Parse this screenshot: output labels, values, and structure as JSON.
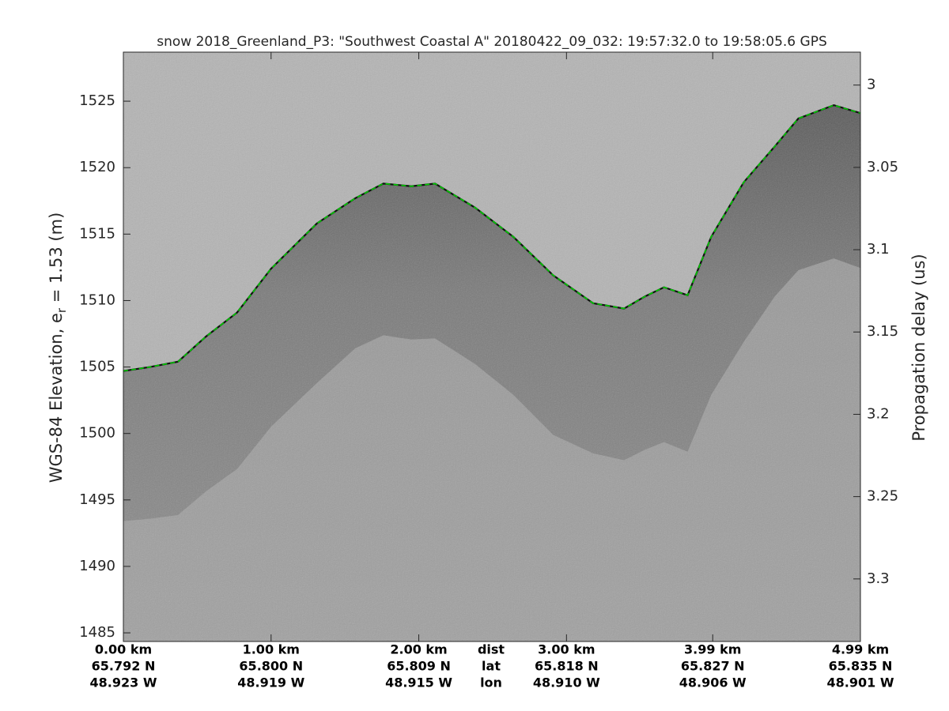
{
  "chart_data": {
    "type": "echogram",
    "title": "snow 2018_Greenland_P3: \"Southwest Coastal A\"  20180422_09_032: 19:57:32.0 to 19:58:05.6 GPS",
    "y_label": {
      "text_before": "WGS-84 Elevation, e",
      "subscript": "r",
      "text_after": " = 1.53 (m)"
    },
    "y2_label": "Propagation delay (us)",
    "x": [
      0,
      0.18,
      0.37,
      0.56,
      0.77,
      1.0,
      1.31,
      1.57,
      1.76,
      1.95,
      2.11,
      2.38,
      2.64,
      2.91,
      3.18,
      3.39,
      3.53,
      3.66,
      3.82,
      3.98,
      4.2,
      4.41,
      4.57,
      4.81,
      4.99
    ],
    "series": [
      {
        "name": "surface",
        "color": "#00d000",
        "values": [
          1504.7,
          1505.0,
          1505.4,
          1507.3,
          1509.1,
          1512.4,
          1515.8,
          1517.7,
          1518.8,
          1518.6,
          1518.8,
          1517.0,
          1514.8,
          1511.9,
          1509.8,
          1509.4,
          1510.3,
          1511.0,
          1510.4,
          1514.8,
          1518.9,
          1521.6,
          1523.7,
          1524.7,
          1524.1
        ]
      }
    ],
    "xlim": [
      0,
      4.99
    ],
    "xticks": [
      {
        "value": 0,
        "label": "0.00 km"
      },
      {
        "value": 1,
        "label": "1.00 km"
      },
      {
        "value": 2,
        "label": "2.00 km"
      },
      {
        "value": 3,
        "label": "3.00 km"
      },
      {
        "value": 3.99,
        "label": "3.99 km"
      },
      {
        "value": 4.99,
        "label": "4.99 km"
      }
    ],
    "lat_labels": [
      "65.792 N",
      "65.800 N",
      "65.809 N",
      "65.818 N",
      "65.827 N",
      "65.835 N"
    ],
    "lon_labels": [
      "48.923 W",
      "48.919 W",
      "48.915 W",
      "48.910 W",
      "48.906 W",
      "48.901 W"
    ],
    "row_labels": [
      "dist",
      "lat",
      "lon"
    ],
    "ylim": [
      1484.35,
      1528.69
    ],
    "yticks": [
      1485,
      1490,
      1495,
      1500,
      1505,
      1510,
      1515,
      1520,
      1525
    ],
    "y2lim": [
      3.338,
      2.98
    ],
    "y2ticks": [
      3,
      3.05,
      3.1,
      3.15,
      3.2,
      3.25,
      3.3
    ]
  }
}
